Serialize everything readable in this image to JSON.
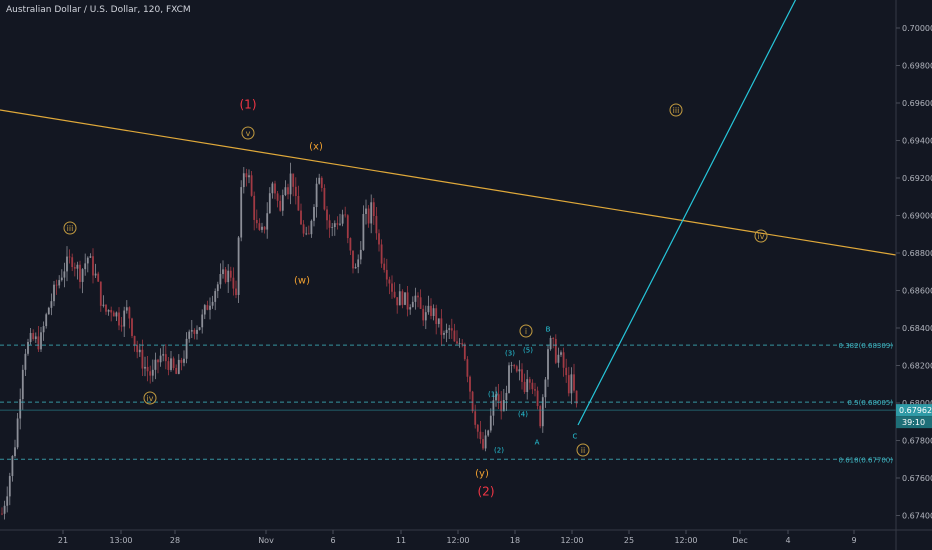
{
  "chart_data": {
    "type": "candlestick",
    "title": "Australian Dollar / U.S. Dollar, 120, FXCM",
    "ylim": [
      0.673,
      0.7015
    ],
    "y_ticks": [
      "0.70000",
      "0.69800",
      "0.69600",
      "0.69400",
      "0.69200",
      "0.69000",
      "0.68800",
      "0.68600",
      "0.68400",
      "0.68200",
      "0.68000",
      "0.67800",
      "0.67600",
      "0.67400"
    ],
    "x_ticks": [
      "21",
      "13:00",
      "28",
      "Nov",
      "6",
      "11",
      "12:00",
      "18",
      "12:00",
      "25",
      "12:00",
      "Dec",
      "4",
      "9"
    ],
    "price": {
      "value": "0.67962",
      "countdown": "39:10"
    },
    "fib_levels": [
      {
        "label": "0.382(0.68309)",
        "value": 0.68309
      },
      {
        "label": "0.5(0.68005)",
        "value": 0.68005
      },
      {
        "label": "0.618(0.67700)",
        "value": 0.677
      }
    ],
    "price_path": [
      [
        0,
        0.6736
      ],
      [
        8,
        0.6756
      ],
      [
        16,
        0.6782
      ],
      [
        24,
        0.6828
      ],
      [
        32,
        0.6834
      ],
      [
        40,
        0.6832
      ],
      [
        48,
        0.685
      ],
      [
        56,
        0.6862
      ],
      [
        64,
        0.6872
      ],
      [
        72,
        0.6877
      ],
      [
        80,
        0.6869
      ],
      [
        88,
        0.6878
      ],
      [
        96,
        0.6867
      ],
      [
        104,
        0.6848
      ],
      [
        112,
        0.6851
      ],
      [
        120,
        0.6844
      ],
      [
        128,
        0.685
      ],
      [
        136,
        0.6829
      ],
      [
        144,
        0.682
      ],
      [
        152,
        0.6814
      ],
      [
        160,
        0.6825
      ],
      [
        168,
        0.6822
      ],
      [
        176,
        0.6815
      ],
      [
        184,
        0.6826
      ],
      [
        192,
        0.684
      ],
      [
        200,
        0.6842
      ],
      [
        208,
        0.6853
      ],
      [
        216,
        0.6862
      ],
      [
        224,
        0.6868
      ],
      [
        232,
        0.6869
      ],
      [
        236,
        0.6855
      ],
      [
        240,
        0.6905
      ],
      [
        244,
        0.6925
      ],
      [
        248,
        0.6923
      ],
      [
        252,
        0.6908
      ],
      [
        256,
        0.6895
      ],
      [
        260,
        0.6888
      ],
      [
        264,
        0.6893
      ],
      [
        268,
        0.6905
      ],
      [
        272,
        0.6918
      ],
      [
        276,
        0.6912
      ],
      [
        280,
        0.69
      ],
      [
        284,
        0.6922
      ],
      [
        288,
        0.6915
      ],
      [
        292,
        0.6924
      ],
      [
        296,
        0.6905
      ],
      [
        300,
        0.69
      ],
      [
        304,
        0.6888
      ],
      [
        308,
        0.6885
      ],
      [
        312,
        0.6902
      ],
      [
        316,
        0.6915
      ],
      [
        320,
        0.6926
      ],
      [
        324,
        0.6908
      ],
      [
        328,
        0.6895
      ],
      [
        332,
        0.6892
      ],
      [
        336,
        0.6898
      ],
      [
        340,
        0.6896
      ],
      [
        344,
        0.6903
      ],
      [
        348,
        0.6885
      ],
      [
        352,
        0.6875
      ],
      [
        356,
        0.687
      ],
      [
        360,
        0.6882
      ],
      [
        364,
        0.6902
      ],
      [
        368,
        0.6897
      ],
      [
        372,
        0.6905
      ],
      [
        376,
        0.6895
      ],
      [
        380,
        0.688
      ],
      [
        384,
        0.6875
      ],
      [
        390,
        0.6865
      ],
      [
        396,
        0.6855
      ],
      [
        402,
        0.6857
      ],
      [
        408,
        0.6852
      ],
      [
        414,
        0.6859
      ],
      [
        420,
        0.6849
      ],
      [
        426,
        0.6846
      ],
      [
        432,
        0.685
      ],
      [
        438,
        0.6842
      ],
      [
        444,
        0.6835
      ],
      [
        450,
        0.684
      ],
      [
        456,
        0.6828
      ],
      [
        462,
        0.6835
      ],
      [
        468,
        0.6815
      ],
      [
        472,
        0.68
      ],
      [
        476,
        0.679
      ],
      [
        480,
        0.6778
      ],
      [
        484,
        0.6775
      ],
      [
        488,
        0.6785
      ],
      [
        492,
        0.6795
      ],
      [
        496,
        0.6806
      ],
      [
        500,
        0.6795
      ],
      [
        504,
        0.68
      ],
      [
        508,
        0.6815
      ],
      [
        512,
        0.6818
      ],
      [
        516,
        0.6814
      ],
      [
        520,
        0.6815
      ],
      [
        524,
        0.6808
      ],
      [
        528,
        0.6818
      ],
      [
        532,
        0.6812
      ],
      [
        536,
        0.68
      ],
      [
        540,
        0.679
      ],
      [
        544,
        0.681
      ],
      [
        548,
        0.683
      ],
      [
        552,
        0.6832
      ],
      [
        556,
        0.6825
      ],
      [
        560,
        0.6825
      ],
      [
        564,
        0.6818
      ],
      [
        568,
        0.6808
      ],
      [
        572,
        0.6812
      ],
      [
        576,
        0.6798
      ],
      [
        578,
        0.6796
      ]
    ],
    "waves": [
      {
        "label": "(1)",
        "color": "#f23645"
      },
      {
        "label": "v",
        "color": "#c29b40"
      },
      {
        "label": "(x)",
        "color": "#f0a030"
      },
      {
        "label": "iii",
        "color": "#c29b40"
      },
      {
        "label": "(w)",
        "color": "#f0a030"
      },
      {
        "label": "iv",
        "color": "#c29b40"
      },
      {
        "label": "i",
        "color": "#c29b40"
      },
      {
        "label": "B",
        "color": "#26c6da"
      },
      {
        "label": "(3)",
        "color": "#26c6da"
      },
      {
        "label": "(5)",
        "color": "#26c6da"
      },
      {
        "label": "(1)",
        "color": "#26c6da"
      },
      {
        "label": "(4)",
        "color": "#26c6da"
      },
      {
        "label": "(2)",
        "color": "#26c6da"
      },
      {
        "label": "A",
        "color": "#26c6da"
      },
      {
        "label": "C",
        "color": "#26c6da"
      },
      {
        "label": "(y)",
        "color": "#f0a030"
      },
      {
        "label": "(2)",
        "color": "#f23645"
      },
      {
        "label": "ii",
        "color": "#c29b40"
      },
      {
        "label": "iii",
        "color": "#c29b40"
      },
      {
        "label": "iv",
        "color": "#c29b40"
      }
    ],
    "colors": {
      "background": "#131722",
      "bull": "#8c8f98",
      "bear": "#a23a44",
      "fib": "#3fb4c0",
      "trend": "#e0a93a",
      "projection": "#26c6da"
    }
  }
}
